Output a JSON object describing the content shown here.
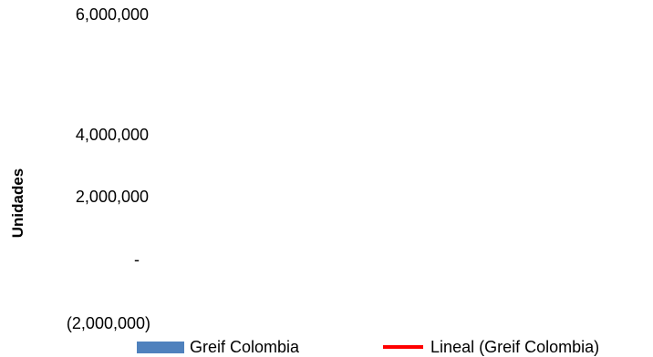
{
  "chart_data": {
    "type": "bar",
    "title": "",
    "xlabel": "",
    "ylabel": "Unidades",
    "ylim": [
      -2000000,
      6000000
    ],
    "y_ticks": [
      {
        "value": 6000000,
        "label": "6,000,000"
      },
      {
        "value": 4000000,
        "label": "4,000,000"
      },
      {
        "value": 2000000,
        "label": "2,000,000"
      },
      {
        "value": 0,
        "label": "-"
      },
      {
        "value": -2000000,
        "label": "(2,000,000)"
      }
    ],
    "categories": [],
    "series": [
      {
        "name": "Greif Colombia",
        "kind": "bar",
        "color": "#4F81BD",
        "values": []
      },
      {
        "name": "Lineal (Greif Colombia)",
        "kind": "trendline",
        "color": "#FF0000",
        "values": []
      }
    ],
    "grid": false,
    "legend_position": "bottom"
  }
}
